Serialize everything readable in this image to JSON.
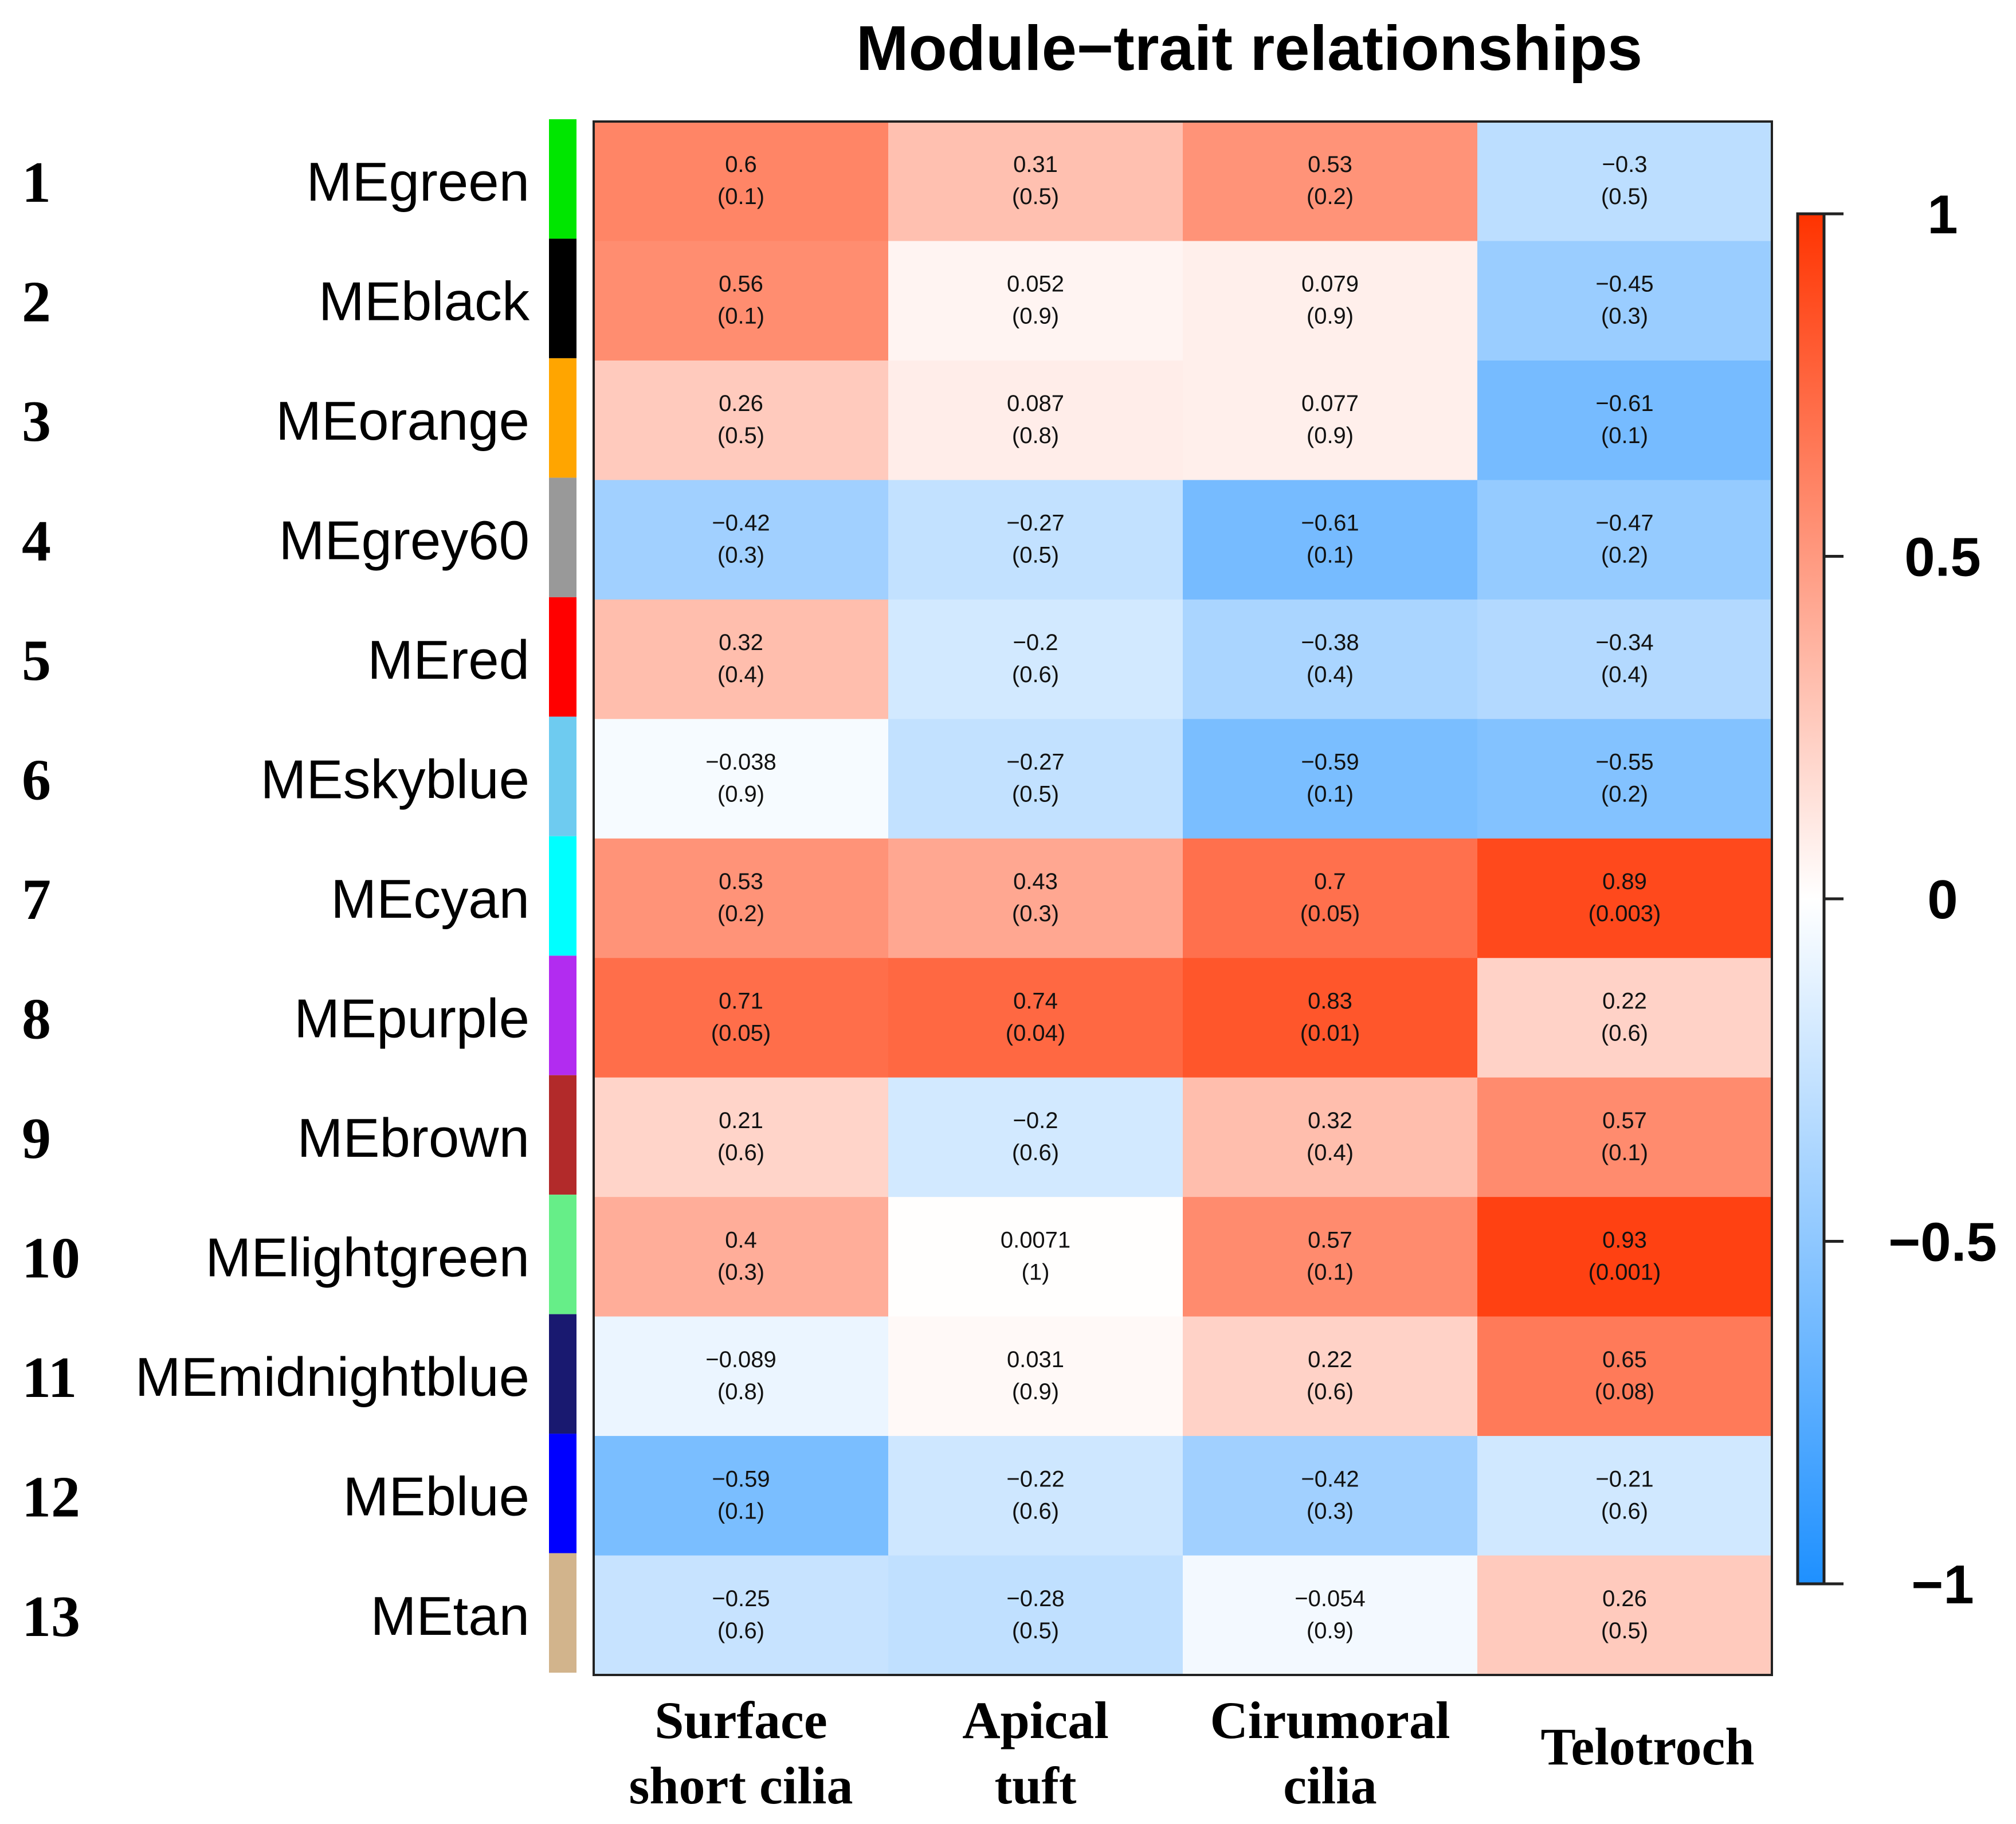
{
  "chart_data": {
    "type": "heatmap",
    "title": "Module−trait relationships",
    "row_numbers": [
      "1",
      "2",
      "3",
      "4",
      "5",
      "6",
      "7",
      "8",
      "9",
      "10",
      "11",
      "12",
      "13"
    ],
    "rows": [
      "MEgreen",
      "MEblack",
      "MEorange",
      "MEgrey60",
      "MEred",
      "MEskyblue",
      "MEcyan",
      "MEpurple",
      "MEbrown",
      "MElightgreen",
      "MEmidnightblue",
      "MEblue",
      "MEtan"
    ],
    "row_colors": [
      "#00e600",
      "#000000",
      "#ffa500",
      "#999999",
      "#ff0000",
      "#6ecbf0",
      "#00ffff",
      "#b22cf0",
      "#b22a2a",
      "#66ee88",
      "#191970",
      "#0000ff",
      "#d2b48c"
    ],
    "columns": [
      {
        "line1": "Surface",
        "line2": "short cilia"
      },
      {
        "line1": "Apical",
        "line2": "tuft"
      },
      {
        "line1": "Cirumoral",
        "line2": "cilia"
      },
      {
        "line1": "Telotroch",
        "line2": ""
      }
    ],
    "correlation": [
      [
        0.6,
        0.31,
        0.53,
        -0.3
      ],
      [
        0.56,
        0.052,
        0.079,
        -0.45
      ],
      [
        0.26,
        0.087,
        0.077,
        -0.61
      ],
      [
        -0.42,
        -0.27,
        -0.61,
        -0.47
      ],
      [
        0.32,
        -0.2,
        -0.38,
        -0.34
      ],
      [
        -0.038,
        -0.27,
        -0.59,
        -0.55
      ],
      [
        0.53,
        0.43,
        0.7,
        0.89
      ],
      [
        0.71,
        0.74,
        0.83,
        0.22
      ],
      [
        0.21,
        -0.2,
        0.32,
        0.57
      ],
      [
        0.4,
        0.0071,
        0.57,
        0.93
      ],
      [
        -0.089,
        0.031,
        0.22,
        0.65
      ],
      [
        -0.59,
        -0.22,
        -0.42,
        -0.21
      ],
      [
        -0.25,
        -0.28,
        -0.054,
        0.26
      ]
    ],
    "value_labels": [
      [
        "0.6",
        "0.31",
        "0.53",
        "−0.3"
      ],
      [
        "0.56",
        "0.052",
        "0.079",
        "−0.45"
      ],
      [
        "0.26",
        "0.087",
        "0.077",
        "−0.61"
      ],
      [
        "−0.42",
        "−0.27",
        "−0.61",
        "−0.47"
      ],
      [
        "0.32",
        "−0.2",
        "−0.38",
        "−0.34"
      ],
      [
        "−0.038",
        "−0.27",
        "−0.59",
        "−0.55"
      ],
      [
        "0.53",
        "0.43",
        "0.7",
        "0.89"
      ],
      [
        "0.71",
        "0.74",
        "0.83",
        "0.22"
      ],
      [
        "0.21",
        "−0.2",
        "0.32",
        "0.57"
      ],
      [
        "0.4",
        "0.0071",
        "0.57",
        "0.93"
      ],
      [
        "−0.089",
        "0.031",
        "0.22",
        "0.65"
      ],
      [
        "−0.59",
        "−0.22",
        "−0.42",
        "−0.21"
      ],
      [
        "−0.25",
        "−0.28",
        "−0.054",
        "0.26"
      ]
    ],
    "pvalue_labels": [
      [
        "(0.1)",
        "(0.5)",
        "(0.2)",
        "(0.5)"
      ],
      [
        "(0.1)",
        "(0.9)",
        "(0.9)",
        "(0.3)"
      ],
      [
        "(0.5)",
        "(0.8)",
        "(0.9)",
        "(0.1)"
      ],
      [
        "(0.3)",
        "(0.5)",
        "(0.1)",
        "(0.2)"
      ],
      [
        "(0.4)",
        "(0.6)",
        "(0.4)",
        "(0.4)"
      ],
      [
        "(0.9)",
        "(0.5)",
        "(0.1)",
        "(0.2)"
      ],
      [
        "(0.2)",
        "(0.3)",
        "(0.05)",
        "(0.003)"
      ],
      [
        "(0.05)",
        "(0.04)",
        "(0.01)",
        "(0.6)"
      ],
      [
        "(0.6)",
        "(0.6)",
        "(0.4)",
        "(0.1)"
      ],
      [
        "(0.3)",
        "(1)",
        "(0.1)",
        "(0.001)"
      ],
      [
        "(0.8)",
        "(0.9)",
        "(0.6)",
        "(0.08)"
      ],
      [
        "(0.1)",
        "(0.6)",
        "(0.3)",
        "(0.6)"
      ],
      [
        "(0.6)",
        "(0.5)",
        "(0.9)",
        "(0.5)"
      ]
    ],
    "colorscale": {
      "min": -1,
      "max": 1,
      "low_color": "#1e90ff",
      "mid_color": "#ffffff",
      "high_color": "#ff3300",
      "ticks": [
        1,
        0.5,
        0,
        -0.5,
        -1
      ],
      "tick_labels": [
        "1",
        "0.5",
        "0",
        "−0.5",
        "−1"
      ]
    }
  }
}
